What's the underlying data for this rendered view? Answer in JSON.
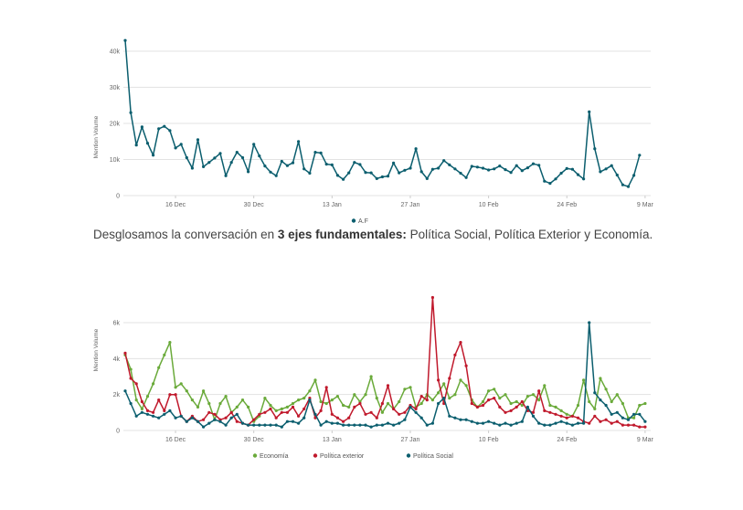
{
  "caption": {
    "before": "Desglosamos la conversación en ",
    "bold": "3 ejes fundamentales:",
    "after": " Política Social, Política Exterior y Economía."
  },
  "chart_data": [
    {
      "type": "line",
      "ylabel": "Mention Volume",
      "ylim": [
        0,
        40000
      ],
      "y_ticks": [
        "0",
        "10k",
        "20k",
        "30k",
        "40k"
      ],
      "x_ticks": [
        "16 Dec",
        "30 Dec",
        "13 Jan",
        "27 Jan",
        "10 Feb",
        "24 Feb",
        "9 Mar"
      ],
      "x_range_days": [
        0,
        94
      ],
      "x_tick_days": [
        9,
        23,
        37,
        51,
        65,
        79,
        93
      ],
      "grid": true,
      "legend_position": "bottom-center",
      "series": [
        {
          "name": "A.F",
          "color": "#0b5e6e",
          "values": [
            43000,
            23000,
            14000,
            19000,
            14500,
            11200,
            18500,
            19200,
            18000,
            13200,
            14200,
            10500,
            7600,
            15500,
            8000,
            9200,
            10400,
            11700,
            5500,
            9200,
            12000,
            10500,
            6600,
            14200,
            11000,
            8200,
            6500,
            5500,
            9500,
            8300,
            9100,
            15000,
            7400,
            6200,
            12000,
            11800,
            8700,
            8500,
            5600,
            4500,
            6300,
            9200,
            8600,
            6400,
            6300,
            4700,
            5200,
            5400,
            9000,
            6300,
            7000,
            7600,
            13000,
            6600,
            4700,
            7300,
            7600,
            9700,
            8500,
            7400,
            6200,
            5000,
            8100,
            7900,
            7600,
            7100,
            7400,
            8200,
            7200,
            6400,
            8300,
            6900,
            7700,
            8800,
            8400,
            4000,
            3400,
            4600,
            6200,
            7500,
            7300,
            5800,
            4600,
            23200,
            13000,
            6600,
            7400,
            8300,
            5700,
            3000,
            2500,
            5600,
            11200
          ]
        }
      ]
    },
    {
      "type": "line",
      "ylabel": "Mention Volume",
      "ylim": [
        0,
        6000
      ],
      "y_ticks": [
        "0",
        "2k",
        "4k",
        "6k"
      ],
      "x_ticks": [
        "16 Dec",
        "30 Dec",
        "13 Jan",
        "27 Jan",
        "10 Feb",
        "24 Feb",
        "9 Mar"
      ],
      "x_range_days": [
        0,
        94
      ],
      "x_tick_days": [
        9,
        23,
        37,
        51,
        65,
        79,
        93
      ],
      "grid": true,
      "legend_position": "bottom-center",
      "series": [
        {
          "name": "Economía",
          "color": "#6aaa3a",
          "values": [
            4200,
            3400,
            1700,
            1200,
            1900,
            2600,
            3500,
            4200,
            4900,
            2400,
            2600,
            2200,
            1700,
            1300,
            2200,
            1500,
            600,
            1500,
            1900,
            1000,
            1300,
            1700,
            1300,
            500,
            800,
            1800,
            1400,
            1100,
            1200,
            1300,
            1500,
            1700,
            1800,
            2200,
            2800,
            1600,
            1500,
            1700,
            1900,
            1400,
            1300,
            2000,
            1600,
            2000,
            3000,
            1800,
            1000,
            1500,
            1200,
            1600,
            2300,
            2400,
            1300,
            1500,
            2000,
            1700,
            2100,
            2600,
            1800,
            2000,
            2800,
            2500,
            1700,
            1300,
            1600,
            2200,
            2300,
            1800,
            2000,
            1500,
            1600,
            1400,
            1900,
            2000,
            1700,
            2500,
            1400,
            1300,
            1100,
            900,
            800,
            1400,
            2800,
            1600,
            1200,
            2900,
            2300,
            1600,
            2000,
            1500,
            700,
            700,
            1400,
            1500
          ]
        },
        {
          "name": "Política exterior",
          "color": "#c0192c",
          "values": [
            4300,
            2900,
            2600,
            1600,
            1100,
            1000,
            1700,
            1100,
            2000,
            2000,
            800,
            500,
            800,
            500,
            600,
            1000,
            900,
            600,
            700,
            1000,
            500,
            400,
            300,
            600,
            900,
            1000,
            1200,
            700,
            1000,
            1000,
            1300,
            800,
            1200,
            1800,
            700,
            1100,
            2400,
            900,
            700,
            500,
            700,
            1300,
            1500,
            900,
            1000,
            700,
            1500,
            2500,
            1200,
            900,
            1000,
            1400,
            1200,
            1900,
            1700,
            7400,
            2800,
            1500,
            2900,
            4200,
            4900,
            3600,
            1500,
            1300,
            1400,
            1700,
            1800,
            1300,
            1000,
            1100,
            1300,
            1600,
            1100,
            1000,
            2200,
            1100,
            1000,
            900,
            800,
            700,
            800,
            700,
            500,
            400,
            800,
            500,
            600,
            400,
            500,
            300,
            300,
            300,
            200,
            200
          ]
        },
        {
          "name": "Política Social",
          "color": "#0b5e6e",
          "values": [
            2200,
            1500,
            800,
            1000,
            900,
            800,
            700,
            900,
            1100,
            700,
            800,
            500,
            700,
            500,
            200,
            400,
            600,
            500,
            300,
            700,
            900,
            400,
            300,
            300,
            300,
            300,
            300,
            300,
            200,
            500,
            500,
            400,
            700,
            1700,
            900,
            300,
            500,
            400,
            400,
            300,
            300,
            300,
            300,
            300,
            200,
            300,
            300,
            400,
            300,
            400,
            600,
            1300,
            1000,
            700,
            300,
            400,
            1500,
            1800,
            800,
            700,
            600,
            600,
            500,
            400,
            400,
            500,
            400,
            300,
            400,
            300,
            400,
            500,
            1300,
            800,
            400,
            300,
            300,
            400,
            500,
            400,
            300,
            400,
            400,
            6000,
            2100,
            1700,
            1400,
            900,
            1000,
            700,
            600,
            900,
            900,
            500
          ]
        }
      ]
    }
  ]
}
